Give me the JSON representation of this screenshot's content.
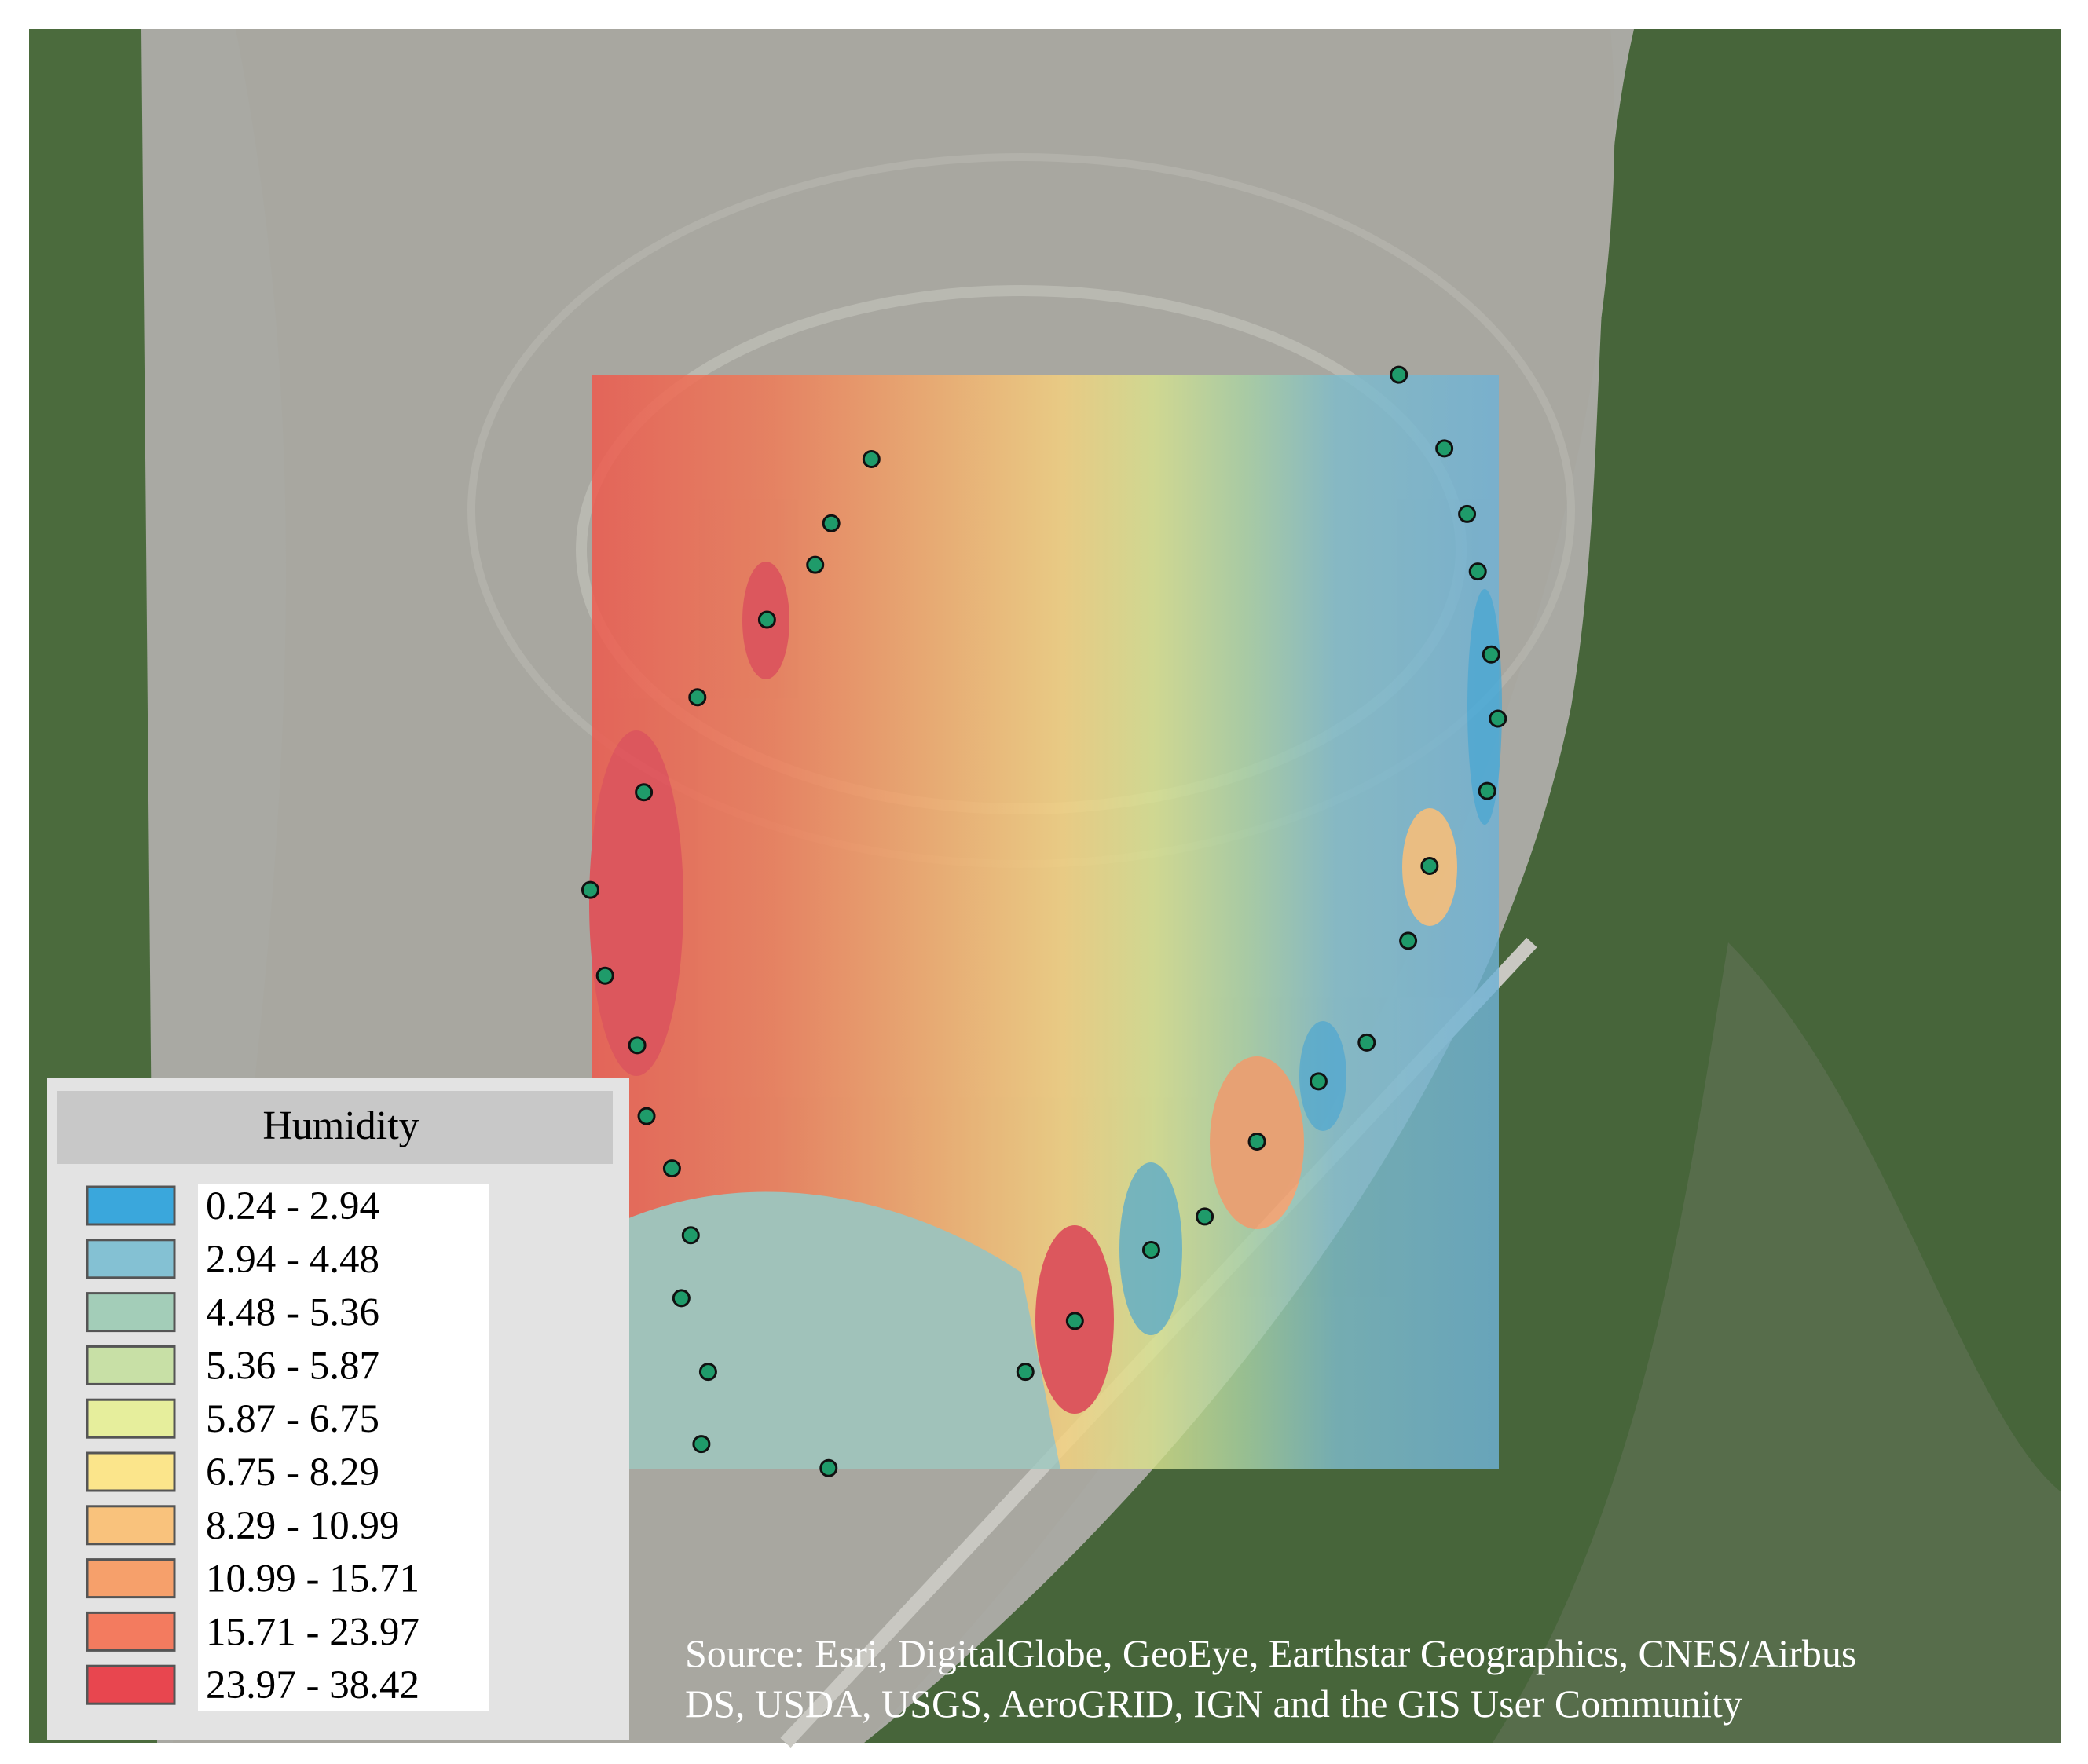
{
  "legend": {
    "title": "Humidity",
    "items": [
      {
        "label": "0.24 - 2.94",
        "color": "#3aa7dc"
      },
      {
        "label": "2.94 - 4.48",
        "color": "#84c1d3"
      },
      {
        "label": "4.48 - 5.36",
        "color": "#a3cdb8"
      },
      {
        "label": "5.36 - 5.87",
        "color": "#c8e0a6"
      },
      {
        "label": "5.87 - 6.75",
        "color": "#e6ee9c"
      },
      {
        "label": "6.75 - 8.29",
        "color": "#fbe58b"
      },
      {
        "label": "8.29 - 10.99",
        "color": "#f9c27c"
      },
      {
        "label": "10.99 - 15.71",
        "color": "#f6a06b"
      },
      {
        "label": "15.71 - 23.97",
        "color": "#f37b5f"
      },
      {
        "label": "23.97 - 38.42",
        "color": "#e8464f"
      }
    ]
  },
  "source": {
    "line1": "Source: Esri, DigitalGlobe, GeoEye, Earthstar Geographics, CNES/Airbus",
    "line2": "DS, USDA, USGS, AeroGRID, IGN and the GIS User Community"
  }
}
